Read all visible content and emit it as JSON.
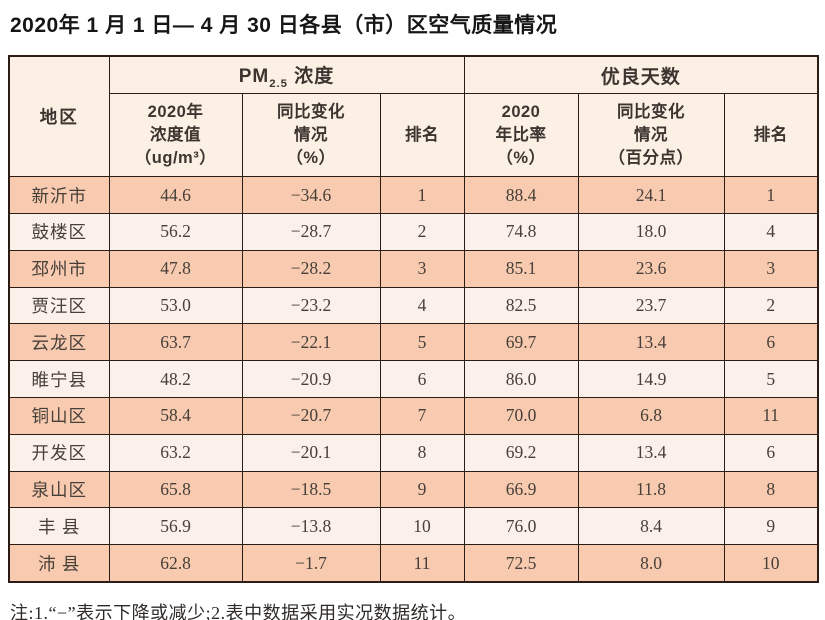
{
  "page": {
    "title": "2020年 1 月 1 日— 4 月 30 日各县（市）区空气质量情况",
    "note": "注:1.“−”表示下降或减少;2.表中数据采用实况数据统计。"
  },
  "colors": {
    "row_salmon": "#f8cab0",
    "row_light": "#fbf1ea",
    "header_bg": "#fcf0e5",
    "border": "#2b1c15"
  },
  "table": {
    "region_label": "地区",
    "pm_group": {
      "prefix": "PM",
      "sub": "2.5",
      "suffix": " 浓度"
    },
    "good_days_label": "优良天数",
    "sub_headers": {
      "pm_value": "2020年\n浓度值\n（ug/m³）",
      "pm_change": "同比变化\n情况\n（%）",
      "pm_rank": "排名",
      "rate": "2020\n年比率\n（%）",
      "rate_change": "同比变化\n情况\n（百分点）",
      "rate_rank": "排名"
    },
    "column_keys": [
      "region",
      "pm_value",
      "pm_change",
      "pm_rank",
      "rate",
      "rate_change",
      "rate_rank"
    ],
    "rows": [
      {
        "region": "新沂市",
        "pm_value": "44.6",
        "pm_change": "−34.6",
        "pm_rank": "1",
        "rate": "88.4",
        "rate_change": "24.1",
        "rate_rank": "1"
      },
      {
        "region": "鼓楼区",
        "pm_value": "56.2",
        "pm_change": "−28.7",
        "pm_rank": "2",
        "rate": "74.8",
        "rate_change": "18.0",
        "rate_rank": "4"
      },
      {
        "region": "邳州市",
        "pm_value": "47.8",
        "pm_change": "−28.2",
        "pm_rank": "3",
        "rate": "85.1",
        "rate_change": "23.6",
        "rate_rank": "3"
      },
      {
        "region": "贾汪区",
        "pm_value": "53.0",
        "pm_change": "−23.2",
        "pm_rank": "4",
        "rate": "82.5",
        "rate_change": "23.7",
        "rate_rank": "2"
      },
      {
        "region": "云龙区",
        "pm_value": "63.7",
        "pm_change": "−22.1",
        "pm_rank": "5",
        "rate": "69.7",
        "rate_change": "13.4",
        "rate_rank": "6"
      },
      {
        "region": "睢宁县",
        "pm_value": "48.2",
        "pm_change": "−20.9",
        "pm_rank": "6",
        "rate": "86.0",
        "rate_change": "14.9",
        "rate_rank": "5"
      },
      {
        "region": "铜山区",
        "pm_value": "58.4",
        "pm_change": "−20.7",
        "pm_rank": "7",
        "rate": "70.0",
        "rate_change": "6.8",
        "rate_rank": "11"
      },
      {
        "region": "开发区",
        "pm_value": "63.2",
        "pm_change": "−20.1",
        "pm_rank": "8",
        "rate": "69.2",
        "rate_change": "13.4",
        "rate_rank": "6"
      },
      {
        "region": "泉山区",
        "pm_value": "65.8",
        "pm_change": "−18.5",
        "pm_rank": "9",
        "rate": "66.9",
        "rate_change": "11.8",
        "rate_rank": "8"
      },
      {
        "region": "丰 县",
        "pm_value": "56.9",
        "pm_change": "−13.8",
        "pm_rank": "10",
        "rate": "76.0",
        "rate_change": "8.4",
        "rate_rank": "9"
      },
      {
        "region": "沛 县",
        "pm_value": "62.8",
        "pm_change": "−1.7",
        "pm_rank": "11",
        "rate": "72.5",
        "rate_change": "8.0",
        "rate_rank": "10"
      }
    ]
  },
  "chart_data": {
    "type": "table",
    "title": "2020年1月1日—4月30日各县（市）区空气质量情况",
    "columns": [
      "地区",
      "PM2.5浓度 2020年浓度值（ug/m³）",
      "PM2.5浓度 同比变化情况（%）",
      "PM2.5浓度 排名",
      "优良天数 2020年比率（%）",
      "优良天数 同比变化情况（百分点）",
      "优良天数 排名"
    ],
    "rows": [
      [
        "新沂市",
        44.6,
        -34.6,
        1,
        88.4,
        24.1,
        1
      ],
      [
        "鼓楼区",
        56.2,
        -28.7,
        2,
        74.8,
        18.0,
        4
      ],
      [
        "邳州市",
        47.8,
        -28.2,
        3,
        85.1,
        23.6,
        3
      ],
      [
        "贾汪区",
        53.0,
        -23.2,
        4,
        82.5,
        23.7,
        2
      ],
      [
        "云龙区",
        63.7,
        -22.1,
        5,
        69.7,
        13.4,
        6
      ],
      [
        "睢宁县",
        48.2,
        -20.9,
        6,
        86.0,
        14.9,
        5
      ],
      [
        "铜山区",
        58.4,
        -20.7,
        7,
        70.0,
        6.8,
        11
      ],
      [
        "开发区",
        63.2,
        -20.1,
        8,
        69.2,
        13.4,
        6
      ],
      [
        "泉山区",
        65.8,
        -18.5,
        9,
        66.9,
        11.8,
        8
      ],
      [
        "丰县",
        56.9,
        -13.8,
        10,
        76.0,
        8.4,
        9
      ],
      [
        "沛县",
        62.8,
        -1.7,
        11,
        72.5,
        8.0,
        10
      ]
    ],
    "note": "注:1.“−”表示下降或减少;2.表中数据采用实况数据统计。"
  }
}
